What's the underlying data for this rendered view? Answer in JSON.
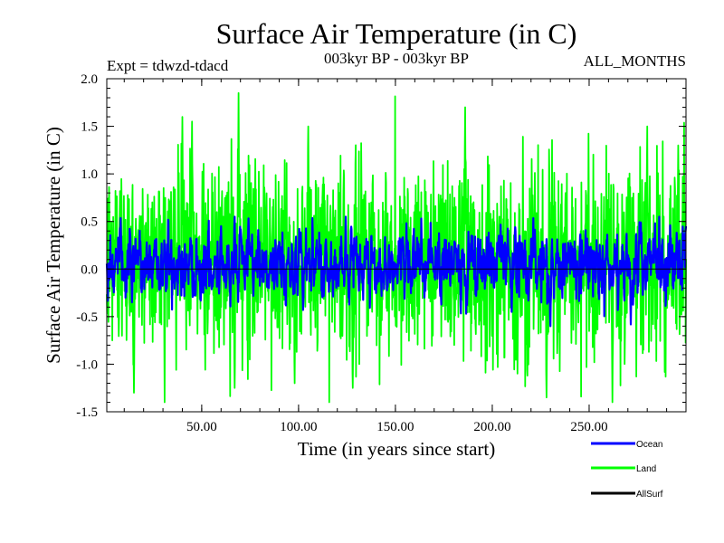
{
  "chart_data": {
    "type": "line",
    "title": "Surface Air Temperature (in C)",
    "subtitle_left": "Expt = tdwzd-tdacd",
    "subtitle_center": "003kyr BP - 003kyr BP",
    "subtitle_right": "ALL_MONTHS",
    "xlabel": "Time (in years since start)",
    "ylabel": "Surface Air Temperature (in C)",
    "xlim": [
      1,
      300
    ],
    "ylim": [
      -1.5,
      2.0
    ],
    "x_ticks": [
      50,
      100,
      150,
      200,
      250
    ],
    "x_tick_labels": [
      "50.00",
      "100.00",
      "150.00",
      "200.00",
      "250.00"
    ],
    "y_ticks": [
      -1.5,
      -1.0,
      -0.5,
      0.0,
      0.5,
      1.0,
      1.5,
      2.0
    ],
    "y_tick_labels": [
      "-1.5",
      "-1.0",
      "-0.5",
      "0.0",
      "0.5",
      "1.0",
      "1.5",
      "2.0"
    ],
    "zero_line": true,
    "grid": false,
    "legend_placement": "bottom-right",
    "series": [
      {
        "name": "Land",
        "color": "#00ff00",
        "mean": 0.1,
        "amplitude": 0.5,
        "min": -1.4,
        "max": 1.85,
        "peaks": [
          [
            69,
            1.85
          ],
          [
            186,
            1.7
          ],
          [
            40,
            1.6
          ],
          [
            45,
            1.55
          ],
          [
            280,
            1.5
          ],
          [
            105,
            1.5
          ],
          [
            296,
            1.3
          ],
          [
            15,
            -1.3
          ],
          [
            67,
            -1.25
          ],
          [
            128,
            -1.25
          ],
          [
            228,
            -1.35
          ],
          [
            262,
            -1.4
          ],
          [
            98,
            -1.2
          ],
          [
            213,
            -1.1
          ]
        ]
      },
      {
        "name": "Ocean",
        "color": "#0000ff",
        "mean": 0.05,
        "amplitude": 0.15,
        "min": -0.6,
        "max": 0.55,
        "peaks": [
          [
            67,
            0.55
          ],
          [
            60,
            0.45
          ],
          [
            300,
            0.45
          ],
          [
            230,
            -0.6
          ],
          [
            14,
            -0.35
          ],
          [
            210,
            -0.45
          ]
        ]
      },
      {
        "name": "AllSurf",
        "color": "#000000",
        "mean": 0.07,
        "amplitude": 0.2,
        "min": -0.8,
        "max": 0.8,
        "peaks": []
      }
    ]
  }
}
